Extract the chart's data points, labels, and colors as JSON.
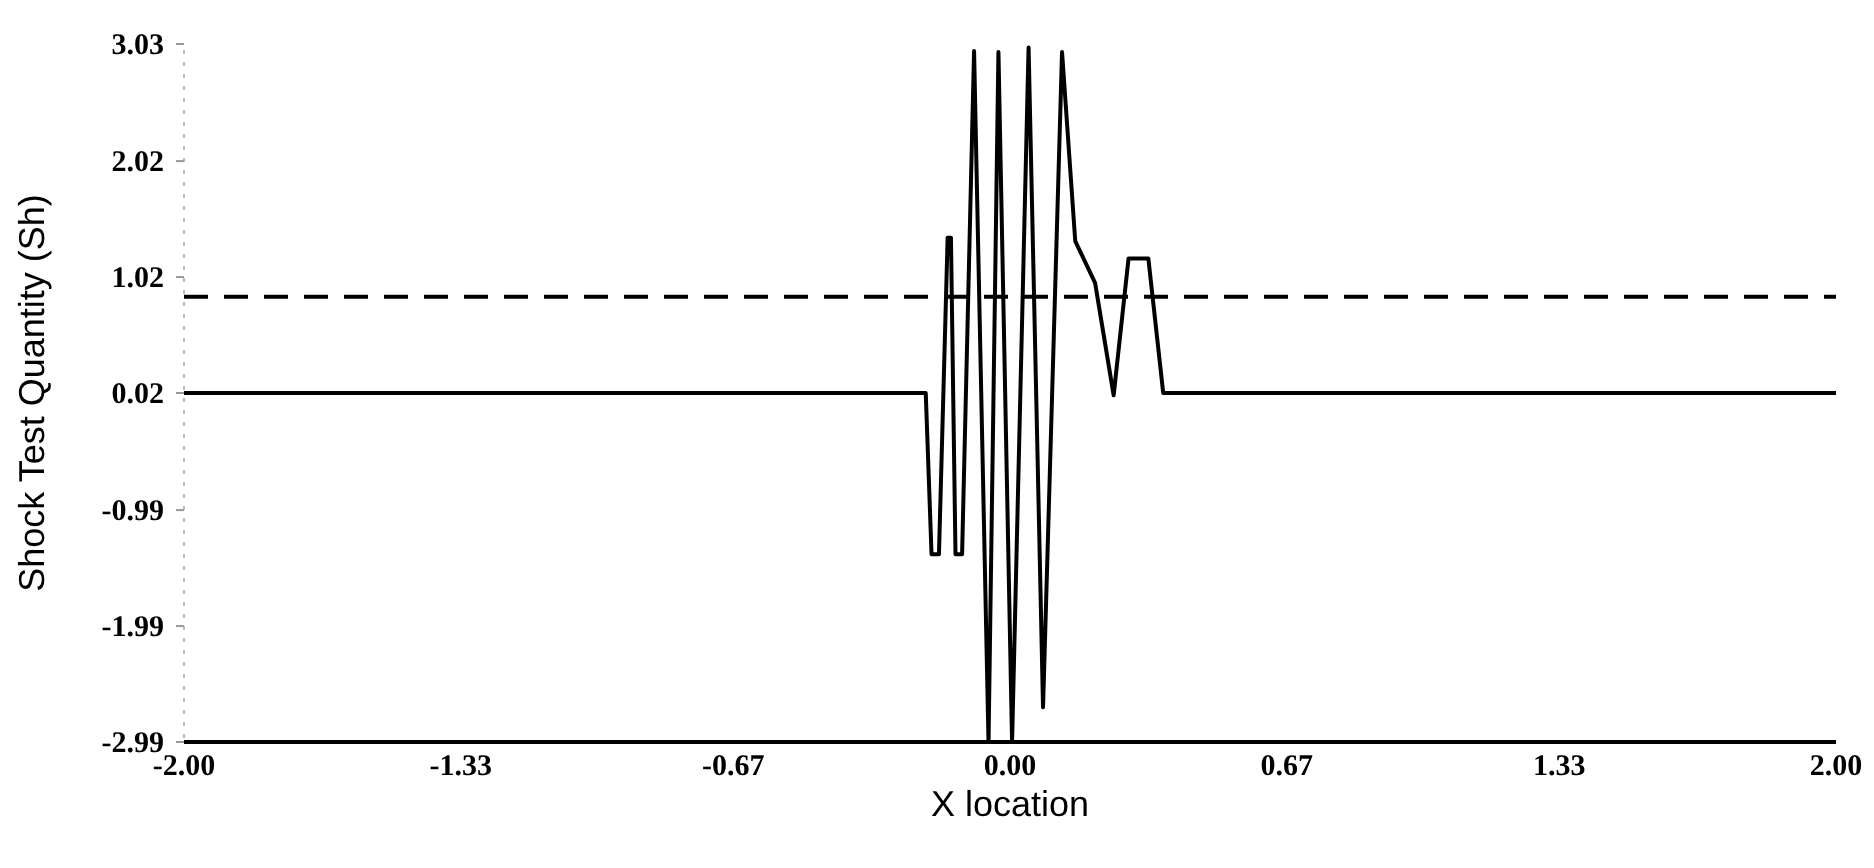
{
  "chart_data": {
    "type": "line",
    "xlabel": "X location",
    "ylabel": "Shock Test Quantity (Sh)",
    "xlim": [
      -2,
      2
    ],
    "ylim": [
      -2.99,
      3.03
    ],
    "xticks": [
      {
        "value": -2,
        "label": "-2.00"
      },
      {
        "value": -1.33,
        "label": "-1.33"
      },
      {
        "value": -0.67,
        "label": "-0.67"
      },
      {
        "value": 0,
        "label": "0.00"
      },
      {
        "value": 0.67,
        "label": "0.67"
      },
      {
        "value": 1.33,
        "label": "1.33"
      },
      {
        "value": 2,
        "label": "2.00"
      }
    ],
    "yticks": [
      -2.99,
      -1.99,
      -0.99,
      0.02,
      1.02,
      2.02,
      3.03
    ],
    "grid": false,
    "marker": "none",
    "line_style": "solid",
    "ref_lines": [
      {
        "axis": "y",
        "value": 0.85,
        "line_style": "dashed",
        "color": "#000000"
      }
    ],
    "series": [
      {
        "color": "#000000",
        "x": [
          -2,
          -0.204,
          -0.19,
          -0.172,
          -0.151,
          -0.143,
          -0.132,
          -0.116,
          -0.087,
          -0.052,
          -0.028,
          0.005,
          0.045,
          0.08,
          0.126,
          0.158,
          0.206,
          0.251,
          0.287,
          0.335,
          0.371,
          2
        ],
        "values": [
          0.02,
          0.02,
          -1.37,
          -1.37,
          1.36,
          1.36,
          -1.37,
          -1.37,
          2.97,
          -2.99,
          2.96,
          -2.99,
          3.0,
          -2.69,
          2.96,
          1.33,
          0.97,
          0.0,
          1.18,
          1.18,
          0.02,
          0.02
        ]
      }
    ]
  }
}
